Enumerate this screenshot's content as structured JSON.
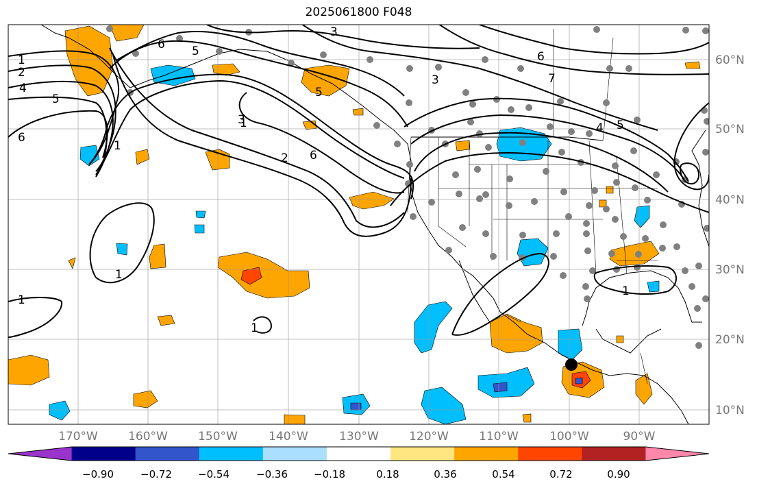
{
  "title": "2025061800 F048",
  "lon_labels": [
    "170°W",
    "160°W",
    "150°W",
    "140°W",
    "130°W",
    "120°W",
    "110°W",
    "100°W",
    "90°W"
  ],
  "lat_labels": [
    "60°N",
    "50°N",
    "40°N",
    "30°N",
    "20°N",
    "10°N"
  ],
  "colorbar": {
    "ticks": [
      "−0.90",
      "−0.72",
      "−0.54",
      "−0.36",
      "−0.18",
      "0.18",
      "0.36",
      "0.54",
      "0.72",
      "0.90"
    ],
    "colors": [
      "#9933cc",
      "#00008b",
      "#3355cc",
      "#00bfff",
      "#aadfff",
      "#ffffff",
      "#ffe680",
      "#ffa500",
      "#ff4500",
      "#b22222",
      "#ff88aa"
    ]
  },
  "contour_labels": [
    "1",
    "2",
    "4",
    "5",
    "6",
    "6",
    "5",
    "3",
    "1",
    "1",
    "2",
    "6",
    "3",
    "5",
    "3",
    "6",
    "7",
    "4",
    "5",
    "1",
    "1",
    "1",
    "1"
  ],
  "marker": "black-dot"
}
